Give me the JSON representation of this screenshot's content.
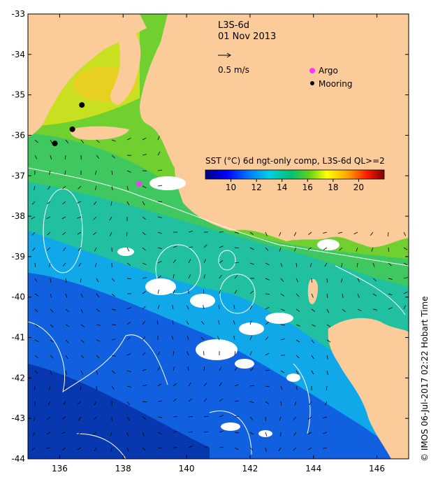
{
  "product": "L3S-6d",
  "date": "01 Nov 2013",
  "velocity_scale": "0.5 m/s",
  "legend": {
    "argo": "Argo",
    "mooring": "Mooring",
    "argo_color": "#ff33ff",
    "mooring_color": "#000000"
  },
  "colorbar": {
    "title": "SST (°C) 6d ngt-only comp, L3S-6d QL>=2",
    "min": 8,
    "max": 22,
    "ticks": [
      "10",
      "12",
      "14",
      "16",
      "18",
      "20"
    ],
    "tick_values": [
      10,
      12,
      14,
      16,
      18,
      20
    ]
  },
  "credit": "© IMOS 06-Jul-2017 02:22 Hobart Time",
  "colors": {
    "land": "#fbcb9a",
    "cloud": "#ffffff",
    "contour": "#ffffff",
    "arrow": "#000000"
  },
  "chart_data": {
    "type": "heatmap",
    "xlim": [
      135,
      147
    ],
    "ylim": [
      -44,
      -33
    ],
    "x_ticks": [
      "136",
      "138",
      "140",
      "142",
      "144",
      "146"
    ],
    "x_tick_values": [
      136,
      138,
      140,
      142,
      144,
      146
    ],
    "y_ticks": [
      "-33",
      "-34",
      "-35",
      "-36",
      "-37",
      "-38",
      "-39",
      "-40",
      "-41",
      "-42",
      "-43",
      "-44"
    ],
    "y_tick_values": [
      -33,
      -34,
      -35,
      -36,
      -37,
      -38,
      -39,
      -40,
      -41,
      -42,
      -43,
      -44
    ],
    "argo": [
      {
        "lon": 138.5,
        "lat": -37.2
      }
    ],
    "moorings": [
      {
        "lon": 136.7,
        "lat": -35.25
      },
      {
        "lon": 136.4,
        "lat": -35.85
      },
      {
        "lon": 135.85,
        "lat": -36.2
      }
    ]
  }
}
